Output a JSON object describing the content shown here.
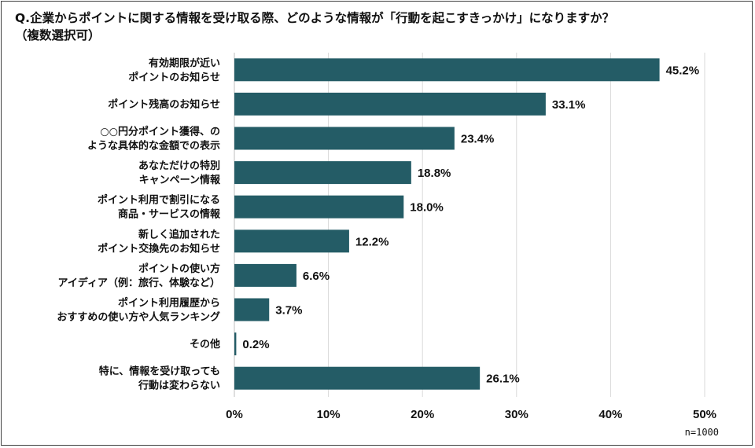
{
  "title": {
    "line1": "Q.企業からポイントに関する情報を受け取る際、どのような情報が「行動を起こすきっかけ」になりますか？",
    "line2": "（複数選択可）"
  },
  "note": "n=1000",
  "colors": {
    "bar": "#245c66",
    "grid": "#d9d9d9"
  },
  "chart_data": {
    "type": "bar",
    "orientation": "horizontal",
    "categories": [
      [
        "有効期限が近い",
        "ポイントのお知らせ"
      ],
      [
        "ポイント残高のお知らせ"
      ],
      [
        "○○円分ポイント獲得、の",
        "ような具体的な金額での表示"
      ],
      [
        "あなただけの特別",
        "キャンペーン情報"
      ],
      [
        "ポイント利用で割引になる",
        "商品・サービスの情報"
      ],
      [
        "新しく追加された",
        "ポイント交換先のお知らせ"
      ],
      [
        "ポイントの使い方",
        "アイディア（例：旅行、体験など）"
      ],
      [
        "ポイント利用履歴から",
        "おすすめの使い方や人気ランキング"
      ],
      [
        "その他"
      ],
      [
        "特に、情報を受け取っても",
        "行動は変わらない"
      ]
    ],
    "values": [
      45.2,
      33.1,
      23.4,
      18.8,
      18.0,
      12.2,
      6.6,
      3.7,
      0.2,
      26.1
    ],
    "value_labels": [
      "45.2%",
      "33.1%",
      "23.4%",
      "18.8%",
      "18.0%",
      "12.2%",
      "6.6%",
      "3.7%",
      "0.2%",
      "26.1%"
    ],
    "xlim": [
      0,
      50
    ],
    "x_ticks": [
      0,
      10,
      20,
      30,
      40,
      50
    ],
    "x_tick_labels": [
      "0%",
      "10%",
      "20%",
      "30%",
      "40%",
      "50%"
    ],
    "grid": true
  }
}
